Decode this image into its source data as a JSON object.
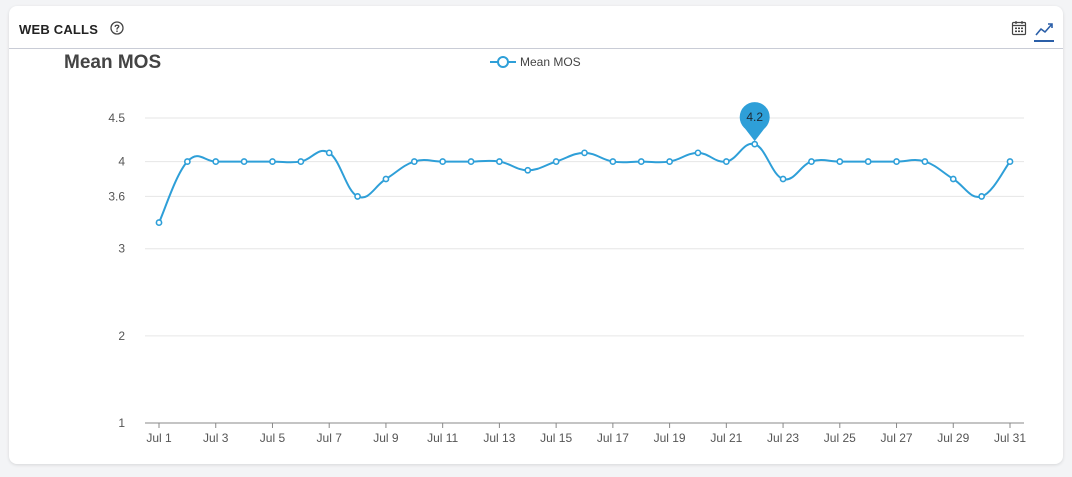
{
  "header": {
    "title": "WEB CALLS",
    "help_icon": "question-circle-icon",
    "calendar_icon": "calendar-icon",
    "trend_icon": "line-chart-icon"
  },
  "colors": {
    "series": "#2e9fd8",
    "grid": "#e6e6e6",
    "axis": "#888888",
    "tooltip": "#2e9fd8",
    "active_view": "#2b5fa8"
  },
  "chart_data": {
    "type": "line",
    "title": "Mean MOS",
    "legend": "top-center",
    "grid": true,
    "xlabel": "",
    "ylabel": "",
    "ylim": [
      1,
      4.5
    ],
    "y_ticks": [
      1,
      2,
      3,
      3.6,
      4,
      4.5
    ],
    "y_tick_labels": [
      "1",
      "2",
      "3",
      "3.6",
      "4",
      "4.5"
    ],
    "x_tick_labels": [
      "Jul 1",
      "Jul 3",
      "Jul 5",
      "Jul 7",
      "Jul 9",
      "Jul 11",
      "Jul 13",
      "Jul 15",
      "Jul 17",
      "Jul 19",
      "Jul 21",
      "Jul 23",
      "Jul 25",
      "Jul 27",
      "Jul 29",
      "Jul 31"
    ],
    "x": [
      "Jul 1",
      "Jul 2",
      "Jul 3",
      "Jul 4",
      "Jul 5",
      "Jul 6",
      "Jul 7",
      "Jul 8",
      "Jul 9",
      "Jul 10",
      "Jul 11",
      "Jul 12",
      "Jul 13",
      "Jul 14",
      "Jul 15",
      "Jul 16",
      "Jul 17",
      "Jul 18",
      "Jul 19",
      "Jul 20",
      "Jul 21",
      "Jul 22",
      "Jul 23",
      "Jul 24",
      "Jul 25",
      "Jul 26",
      "Jul 27",
      "Jul 28",
      "Jul 29",
      "Jul 30",
      "Jul 31"
    ],
    "series": [
      {
        "name": "Mean MOS",
        "values": [
          3.3,
          4.0,
          4.0,
          4.0,
          4.0,
          4.0,
          4.1,
          3.6,
          3.8,
          4.0,
          4.0,
          4.0,
          4.0,
          3.9,
          4.0,
          4.1,
          4.0,
          4.0,
          4.0,
          4.1,
          4.0,
          4.2,
          3.8,
          4.0,
          4.0,
          4.0,
          4.0,
          4.0,
          3.8,
          3.6,
          4.0
        ]
      }
    ],
    "tooltip": {
      "x": "Jul 22",
      "label": "4.2"
    }
  }
}
